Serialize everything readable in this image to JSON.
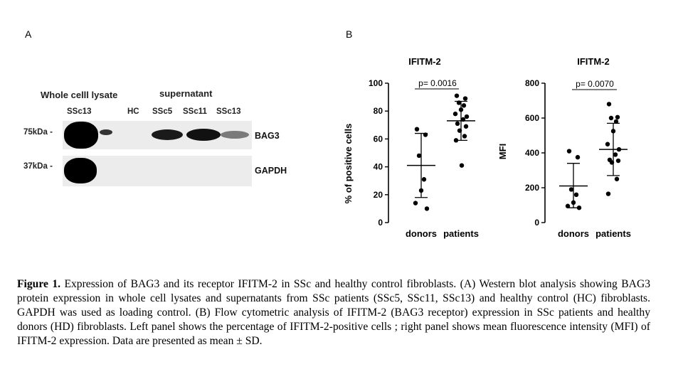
{
  "panel_labels": {
    "a": "A",
    "b": "B"
  },
  "western_blot": {
    "group_whole": "Whole celll lysate",
    "group_super": "supernatant",
    "lanes": [
      "SSc13",
      "HC",
      "SSc5",
      "SSc11",
      "SSc13"
    ],
    "markers": [
      "75kDa -",
      "37kDa -"
    ],
    "bands": [
      "BAG3",
      "GAPDH"
    ]
  },
  "chart_data": [
    {
      "type": "scatter",
      "title": "IFITM-2",
      "ylabel": "% of positive cells",
      "xlabel": "",
      "categories": [
        "donors",
        "patients"
      ],
      "ylim": [
        0,
        100
      ],
      "yticks": [
        0,
        20,
        40,
        60,
        80,
        100
      ],
      "pvalue": "p= 0.0016",
      "series": [
        {
          "category": "donors",
          "points": [
            67,
            63,
            48,
            31,
            23,
            14,
            10
          ],
          "mean": 41,
          "sd_low": 18,
          "sd_high": 64
        },
        {
          "category": "patients",
          "points": [
            91,
            89,
            86,
            84,
            81,
            78,
            76,
            74,
            71,
            69,
            66,
            62,
            59,
            41
          ],
          "mean": 73,
          "sd_low": 59,
          "sd_high": 87
        }
      ]
    },
    {
      "type": "scatter",
      "title": "IFITM-2",
      "ylabel": "MFI",
      "xlabel": "",
      "categories": [
        "donors",
        "patients"
      ],
      "ylim": [
        0,
        800
      ],
      "yticks": [
        0,
        200,
        400,
        600,
        800
      ],
      "pvalue": "p= 0.0070",
      "series": [
        {
          "category": "donors",
          "points": [
            410,
            375,
            190,
            160,
            115,
            95,
            85
          ],
          "mean": 210,
          "sd_low": 85,
          "sd_high": 340
        },
        {
          "category": "patients",
          "points": [
            680,
            605,
            600,
            580,
            525,
            450,
            420,
            390,
            360,
            355,
            345,
            250,
            165
          ],
          "mean": 420,
          "sd_low": 270,
          "sd_high": 570
        }
      ]
    }
  ],
  "caption": {
    "bold": "Figure 1.",
    "text": " Expression of BAG3 and its receptor IFITM-2 in SSc and healthy control fibroblasts. (A) Western blot analysis showing BAG3 protein expression in whole cell lysates and supernatants from SSc patients (SSc5, SSc11, SSc13) and healthy control (HC) fibroblasts. GAPDH was used as loading control. (B) Flow cytometric analysis of IFITM-2 (BAG3 receptor) expression in SSc patients and healthy donors (HD) fibroblasts. Left panel shows the percentage of IFITM-2-positive cells ; right panel shows mean fluorescence intensity (MFI) of IFITM-2 expression. Data are presented as mean ± SD."
  }
}
